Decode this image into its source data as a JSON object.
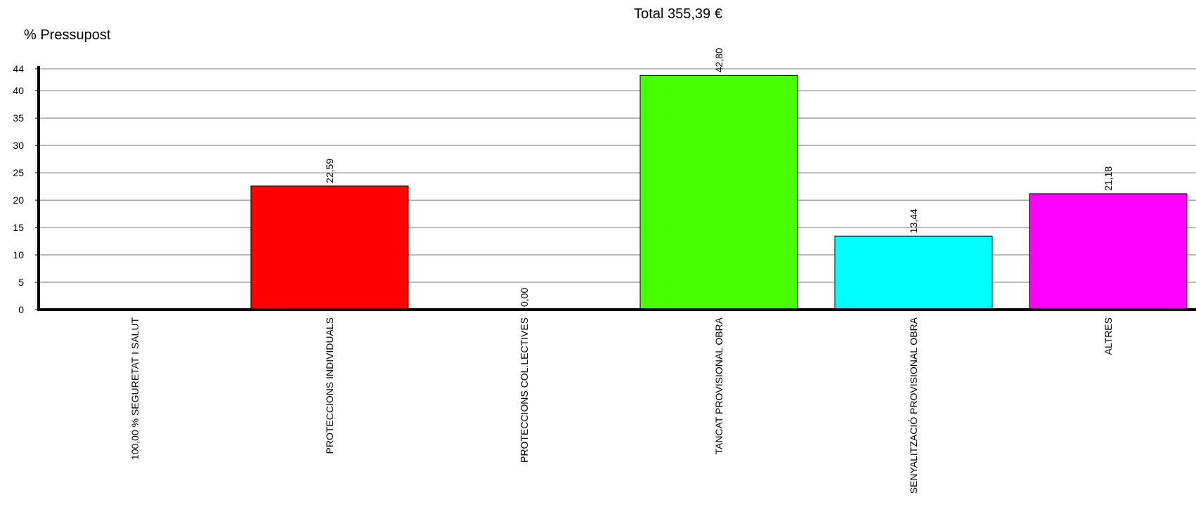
{
  "chart_data": {
    "type": "bar",
    "title": "Total 355,39 €",
    "ylabel": "% Pressupost",
    "xlabel": "",
    "ylim": [
      0,
      44
    ],
    "yticks": [
      "0",
      "5",
      "10",
      "15",
      "20",
      "25",
      "30",
      "35",
      "40",
      "44"
    ],
    "grid": true,
    "categories": [
      "100,00 % SEGURETAT I SALUT",
      "PROTECCIONS INDIVIDUALS",
      "PROTECCIONS COL.LECTIVES",
      "TANCAT PROVISIONAL OBRA",
      "SENYALITZACIÓ PROVISIONAL OBRA",
      "ALTRES"
    ],
    "values": [
      null,
      22.59,
      0.0,
      42.8,
      13.44,
      21.18
    ],
    "value_labels": [
      "",
      "22,59",
      "0,00",
      "42,80",
      "13,44",
      "21,18"
    ],
    "colors": [
      "#ffffff",
      "#ff0000",
      "#ffffff",
      "#48ff00",
      "#00ffff",
      "#ff00ff"
    ]
  }
}
